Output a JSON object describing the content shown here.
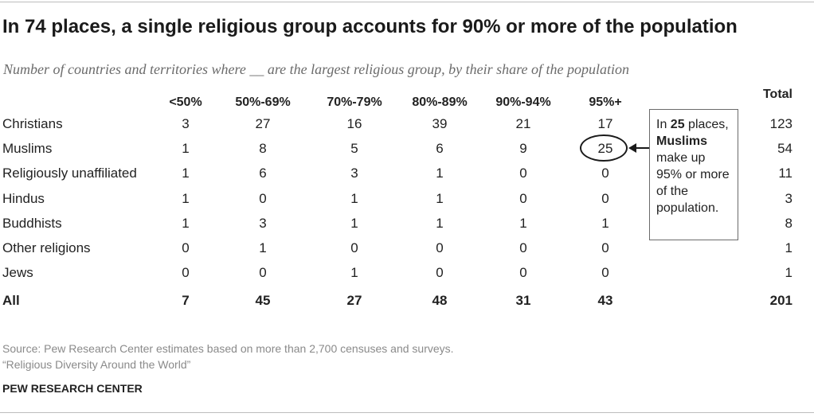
{
  "chart_data": {
    "type": "table",
    "title": "In 74 places, a single religious group accounts for 90% or more of the population",
    "subtitle": "Number of countries and territories where __ are the largest religious group, by their share of the population",
    "columns": [
      "<50%",
      "50%-69%",
      "70%-79%",
      "80%-89%",
      "90%-94%",
      "95%+"
    ],
    "total_label": "Total",
    "rows": [
      {
        "label": "Christians",
        "values": [
          "3",
          "27",
          "16",
          "39",
          "21",
          "17"
        ],
        "total": "123"
      },
      {
        "label": "Muslims",
        "values": [
          "1",
          "8",
          "5",
          "6",
          "9",
          "25"
        ],
        "total": "54"
      },
      {
        "label": "Religiously unaffiliated",
        "values": [
          "1",
          "6",
          "3",
          "1",
          "0",
          "0"
        ],
        "total": "11"
      },
      {
        "label": "Hindus",
        "values": [
          "1",
          "0",
          "1",
          "1",
          "0",
          "0"
        ],
        "total": "3"
      },
      {
        "label": "Buddhists",
        "values": [
          "1",
          "3",
          "1",
          "1",
          "1",
          "1"
        ],
        "total": "8"
      },
      {
        "label": "Other religions",
        "values": [
          "0",
          "1",
          "0",
          "0",
          "0",
          "0"
        ],
        "total": "1"
      },
      {
        "label": "Jews",
        "values": [
          "0",
          "0",
          "1",
          "0",
          "0",
          "0"
        ],
        "total": "1"
      }
    ],
    "all_row": {
      "label": "All",
      "values": [
        "7",
        "45",
        "27",
        "48",
        "31",
        "43"
      ],
      "total": "201"
    },
    "annotation": {
      "part1": "In ",
      "number": "25",
      "part2": " places, ",
      "group": "Muslims",
      "part3": " make up 95% or more of the population."
    },
    "source_lines": [
      "Source: Pew Research Center estimates based on more than 2,700 censuses and surveys.",
      "“Religious Diversity Around the World”"
    ],
    "brand": "PEW RESEARCH CENTER"
  }
}
